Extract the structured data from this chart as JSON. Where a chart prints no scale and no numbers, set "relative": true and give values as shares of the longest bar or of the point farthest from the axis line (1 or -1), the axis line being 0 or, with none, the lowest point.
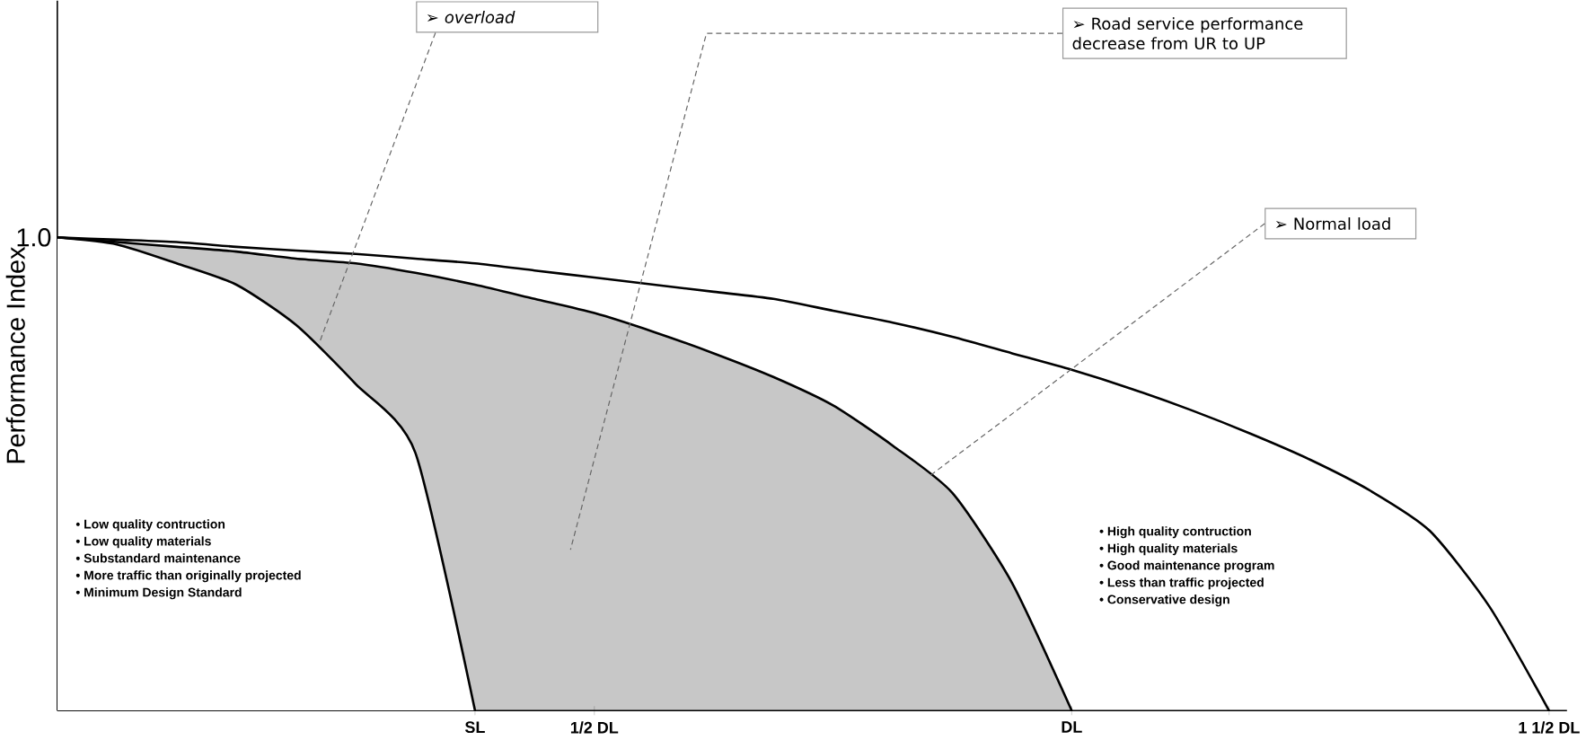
{
  "chart_data": {
    "type": "line",
    "ylabel": "Performance Index",
    "relative": true,
    "categories": [
      null,
      null,
      null,
      null,
      null,
      null,
      null,
      "SL",
      null,
      "1/2 DL",
      null,
      null,
      null,
      null,
      null,
      null,
      null,
      "DL",
      null,
      null,
      null,
      null,
      null,
      null,
      null,
      "1 1/2 DL"
    ],
    "series": [
      {
        "color": "#000000",
        "values": [
          1,
          0.985,
          0.945,
          0.9,
          0.815,
          0.69,
          0.545,
          0,
          null,
          null,
          null,
          null,
          null,
          null,
          null,
          null,
          null,
          null,
          null,
          null,
          null,
          null,
          null,
          null,
          null,
          null
        ]
      },
      {
        "type": "area",
        "color": "#000000",
        "values": [
          1,
          0.99,
          0.98,
          0.97,
          0.955,
          0.945,
          0.925,
          0.9,
          0.87,
          0.84,
          0.8,
          0.755,
          0.705,
          0.645,
          0.56,
          0.46,
          0.27,
          0,
          null,
          null,
          null,
          null,
          null,
          null,
          null,
          null
        ]
      },
      {
        "color": "#000000",
        "values": [
          1,
          0.995,
          0.99,
          0.98,
          0.972,
          0.965,
          0.955,
          0.945,
          0.93,
          0.915,
          0.9,
          0.885,
          0.87,
          0.845,
          0.82,
          0.79,
          0.755,
          0.72,
          0.68,
          0.635,
          0.585,
          0.53,
          0.465,
          0.38,
          0.22,
          0
        ]
      }
    ],
    "annotations": [
      "➢ *overload*",
      "➢ Road service performance decrease from UR to UP",
      "➢ Normal load",
      "• Low quality contruction",
      "• Low quality materials",
      "• Substandard maintenance",
      "• More traffic than originally projected",
      "• Minimum Design Standard",
      "• High quality contruction",
      "• High quality materials",
      "• Good maintenance program",
      "• Less than traffic projected",
      "• Conservative design",
      "1.0"
    ],
    "grid": false,
    "marker": "none",
    "line_style": "solid"
  }
}
